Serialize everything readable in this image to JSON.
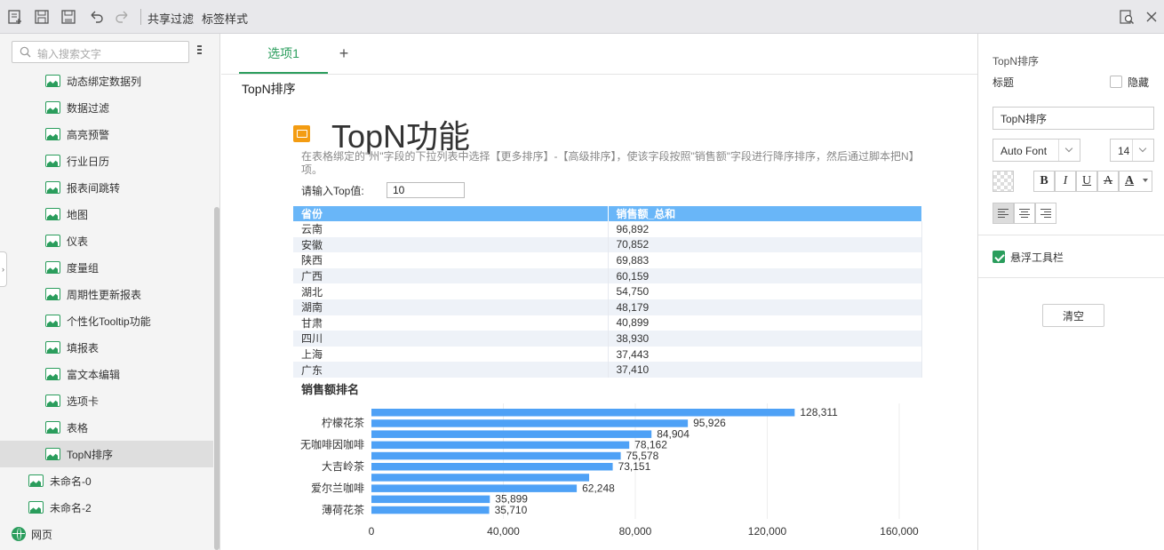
{
  "toolbar": {
    "share_filter": "共享过滤",
    "label_style": "标签样式"
  },
  "sidebar": {
    "search_placeholder": "输入搜索文字",
    "items": [
      {
        "label": "动态绑定数据列"
      },
      {
        "label": "数据过滤"
      },
      {
        "label": "高亮预警"
      },
      {
        "label": "行业日历"
      },
      {
        "label": "报表间跳转"
      },
      {
        "label": "地图"
      },
      {
        "label": "仪表"
      },
      {
        "label": "度量组"
      },
      {
        "label": "周期性更新报表"
      },
      {
        "label": "个性化Tooltip功能"
      },
      {
        "label": "填报表"
      },
      {
        "label": "富文本编辑"
      },
      {
        "label": "选项卡"
      },
      {
        "label": "表格"
      },
      {
        "label": "TopN排序"
      },
      {
        "label": "未命名-0"
      },
      {
        "label": "未命名-2"
      },
      {
        "label": "网页"
      }
    ]
  },
  "tabs": {
    "tab1": "选项1",
    "add": "+"
  },
  "page": {
    "name": "TopN排序",
    "title": "TopN功能",
    "description": "在表格绑定的\"州\"字段的下拉列表中选择【更多排序】-【高级排序】，使该字段按照\"销售额\"字段进行降序排序，然后通过脚本把N】项。",
    "top_label": "请输入Top值:",
    "top_value": "10"
  },
  "table": {
    "headers": [
      "省份",
      "销售额_总和"
    ],
    "rows": [
      [
        "云南",
        "96,892"
      ],
      [
        "安徽",
        "70,852"
      ],
      [
        "陕西",
        "69,883"
      ],
      [
        "广西",
        "60,159"
      ],
      [
        "湖北",
        "54,750"
      ],
      [
        "湖南",
        "48,179"
      ],
      [
        "甘肃",
        "40,899"
      ],
      [
        "四川",
        "38,930"
      ],
      [
        "上海",
        "37,443"
      ],
      [
        "广东",
        "37,410"
      ]
    ]
  },
  "chart_data": {
    "type": "bar",
    "orientation": "horizontal",
    "title": "销售额排名",
    "categories": [
      "",
      "柠檬花茶",
      "",
      "无咖啡因咖啡",
      "",
      "大吉岭茶",
      "",
      "爱尔兰咖啡",
      "",
      "薄荷花茶"
    ],
    "values": [
      128311,
      95926,
      84904,
      78162,
      75578,
      73151,
      66000,
      62248,
      35899,
      35710
    ],
    "value_labels": [
      "128,311",
      "95,926",
      "84,904",
      "78,162",
      "75,578",
      "73,151",
      "",
      "62,248",
      "35,899",
      "35,710"
    ],
    "xlim": [
      0,
      160000
    ],
    "xticks": [
      "0",
      "40,000",
      "80,000",
      "120,000",
      "160,000"
    ],
    "color": "#4ea1f6"
  },
  "right_panel": {
    "heading": "TopN排序",
    "title_label": "标题",
    "hide_label": "隐藏",
    "title_value": "TopN排序",
    "font": "Auto Font",
    "font_size": "14",
    "bold": "B",
    "italic": "I",
    "underline": "U",
    "strike": "A",
    "font_color": "A",
    "floating_toolbar": "悬浮工具栏",
    "clear": "清空"
  }
}
